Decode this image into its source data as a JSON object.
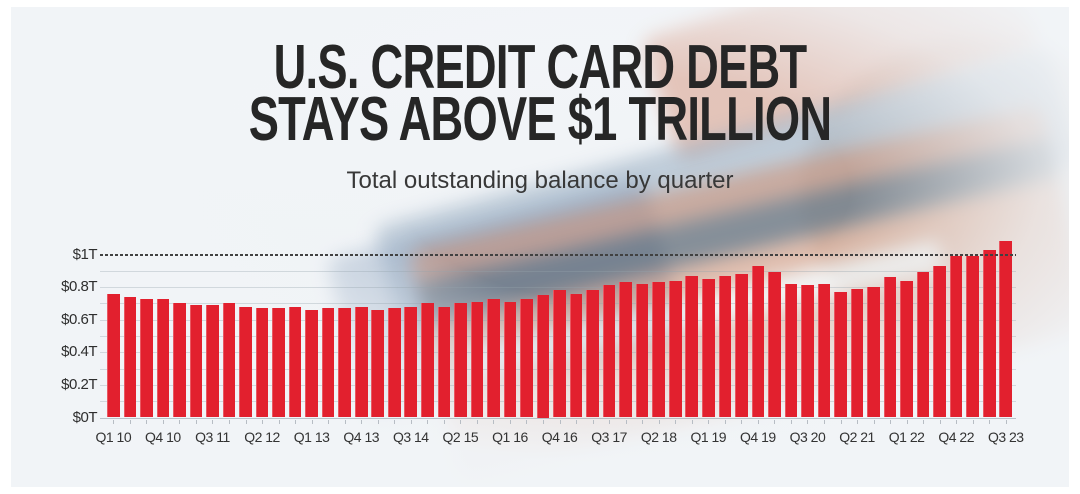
{
  "header": {
    "title_line1": "U.S. CREDIT CARD DEBT",
    "title_line2": "STAYS ABOVE $1 TRILLION",
    "subtitle": "Total outstanding balance by quarter"
  },
  "colors": {
    "bar": "#e2202e",
    "reference_line": "#414141",
    "title_text": "#262626",
    "panel_background": "#f1f4f7"
  },
  "chart_data": {
    "type": "bar",
    "title": "U.S. CREDIT CARD DEBT STAYS ABOVE $1 TRILLION",
    "subtitle": "Total outstanding balance by quarter",
    "unit": "trillions of US dollars",
    "xlabel": "",
    "ylabel": "",
    "ylim": [
      0,
      1.1
    ],
    "grid": "horizontal, minor every 0.1T",
    "legend_position": "none",
    "bar_color": "#e2202e",
    "categories": [
      "Q1 10",
      "Q2 10",
      "Q3 10",
      "Q4 10",
      "Q1 11",
      "Q2 11",
      "Q3 11",
      "Q4 11",
      "Q1 12",
      "Q2 12",
      "Q3 12",
      "Q4 12",
      "Q1 13",
      "Q2 13",
      "Q3 13",
      "Q4 13",
      "Q1 14",
      "Q2 14",
      "Q3 14",
      "Q4 14",
      "Q1 15",
      "Q2 15",
      "Q3 15",
      "Q4 15",
      "Q1 16",
      "Q2 16",
      "Q3 16",
      "Q4 16",
      "Q1 17",
      "Q2 17",
      "Q3 17",
      "Q4 17",
      "Q1 18",
      "Q2 18",
      "Q3 18",
      "Q4 18",
      "Q1 19",
      "Q2 19",
      "Q3 19",
      "Q4 19",
      "Q1 20",
      "Q2 20",
      "Q3 20",
      "Q4 20",
      "Q1 21",
      "Q2 21",
      "Q3 21",
      "Q4 21",
      "Q1 22",
      "Q2 22",
      "Q3 22",
      "Q4 22",
      "Q1 23",
      "Q2 23",
      "Q3 23"
    ],
    "values": [
      0.76,
      0.74,
      0.73,
      0.73,
      0.7,
      0.69,
      0.69,
      0.7,
      0.68,
      0.67,
      0.67,
      0.68,
      0.66,
      0.67,
      0.67,
      0.68,
      0.66,
      0.67,
      0.68,
      0.7,
      0.68,
      0.7,
      0.71,
      0.73,
      0.71,
      0.73,
      0.75,
      0.78,
      0.76,
      0.78,
      0.81,
      0.83,
      0.82,
      0.83,
      0.84,
      0.87,
      0.85,
      0.87,
      0.88,
      0.93,
      0.89,
      0.82,
      0.81,
      0.82,
      0.77,
      0.79,
      0.8,
      0.86,
      0.84,
      0.89,
      0.93,
      0.99,
      0.99,
      1.03,
      1.08
    ],
    "x_tick_labels_shown": [
      "Q1 10",
      "Q4 10",
      "Q3 11",
      "Q2 12",
      "Q1 13",
      "Q4 13",
      "Q3 14",
      "Q2 15",
      "Q1 16",
      "Q4 16",
      "Q3 17",
      "Q2 18",
      "Q1 19",
      "Q4 19",
      "Q3 20",
      "Q2 21",
      "Q1 22",
      "Q4 22",
      "Q3 23"
    ],
    "x_tick_every": 3,
    "y_ticks": [
      "$0T",
      "$0.2T",
      "$0.4T",
      "$0.6T",
      "$0.8T",
      "$1T"
    ],
    "y_tick_values": [
      0,
      0.2,
      0.4,
      0.6,
      0.8,
      1.0
    ],
    "reference_line": {
      "value": 1.0,
      "label": "$1T",
      "style": "dotted"
    }
  }
}
